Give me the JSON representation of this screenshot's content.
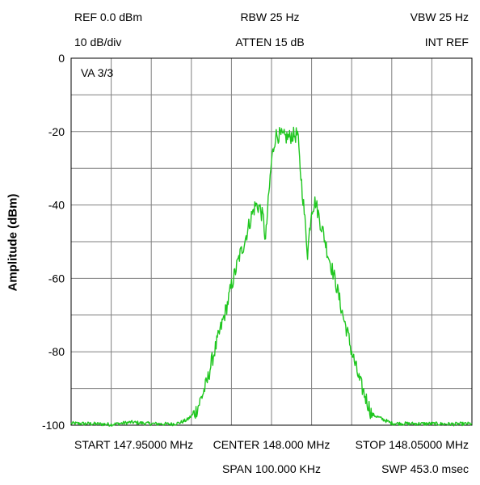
{
  "header": {
    "ref": "REF 0.0 dBm",
    "scale": "10 dB/div",
    "rbw": "RBW 25 Hz",
    "atten": "ATTEN 15 dB",
    "vbw": "VBW 25 Hz",
    "int_ref": "INT REF"
  },
  "trace_label": "VA 3/3",
  "footer": {
    "start": "START 147.95000 MHz",
    "center": "CENTER 148.000 MHz",
    "stop": "STOP 148.05000 MHz",
    "span": "SPAN 100.000 KHz",
    "sweep": "SWP 453.0 msec"
  },
  "chart_data": {
    "type": "line",
    "title": "",
    "xlabel": "",
    "ylabel": "Amplitude (dBm)",
    "xlim": [
      147.95,
      148.05
    ],
    "ylim": [
      -100,
      0
    ],
    "yticks": [
      0,
      -20,
      -40,
      -60,
      -80,
      -100
    ],
    "grid": true,
    "colors": {
      "trace": "#1fc61f",
      "grid": "#7f7f7f",
      "frame": "#000000"
    },
    "series": [
      {
        "x": [
          147.95,
          147.955,
          147.96,
          147.965,
          147.97,
          147.975,
          147.977,
          147.979,
          147.981,
          147.982,
          147.983,
          147.984,
          147.985,
          147.986,
          147.987,
          147.988,
          147.989,
          147.99,
          147.991,
          147.992,
          147.993,
          147.994,
          147.995,
          147.996,
          147.997,
          147.998,
          147.9985,
          147.999,
          148.0,
          148.001,
          148.002,
          148.003,
          148.004,
          148.0045,
          148.005,
          148.006,
          148.0065,
          148.007,
          148.008,
          148.009,
          148.01,
          148.011,
          148.012,
          148.013,
          148.014,
          148.015,
          148.016,
          148.017,
          148.018,
          148.019,
          148.02,
          148.021,
          148.022,
          148.023,
          148.025,
          148.03,
          148.035,
          148.04,
          148.045,
          148.05
        ],
        "y": [
          -99.5,
          -99.6,
          -99.8,
          -99.2,
          -99.6,
          -99.7,
          -99.4,
          -98.5,
          -96.5,
          -94,
          -91,
          -88,
          -83,
          -79,
          -75,
          -71,
          -67,
          -62,
          -58,
          -54,
          -51,
          -47,
          -43,
          -40,
          -40.5,
          -44,
          -50,
          -42,
          -28,
          -21,
          -21,
          -21.5,
          -21.5,
          -21.5,
          -21,
          -21,
          -20.5,
          -28,
          -40,
          -53,
          -41,
          -39,
          -44,
          -48,
          -53,
          -57,
          -61,
          -66,
          -71,
          -75,
          -80,
          -84,
          -88,
          -91,
          -97,
          -99.5,
          -99.6,
          -99.6,
          -99.7,
          -99.6
        ]
      }
    ]
  }
}
